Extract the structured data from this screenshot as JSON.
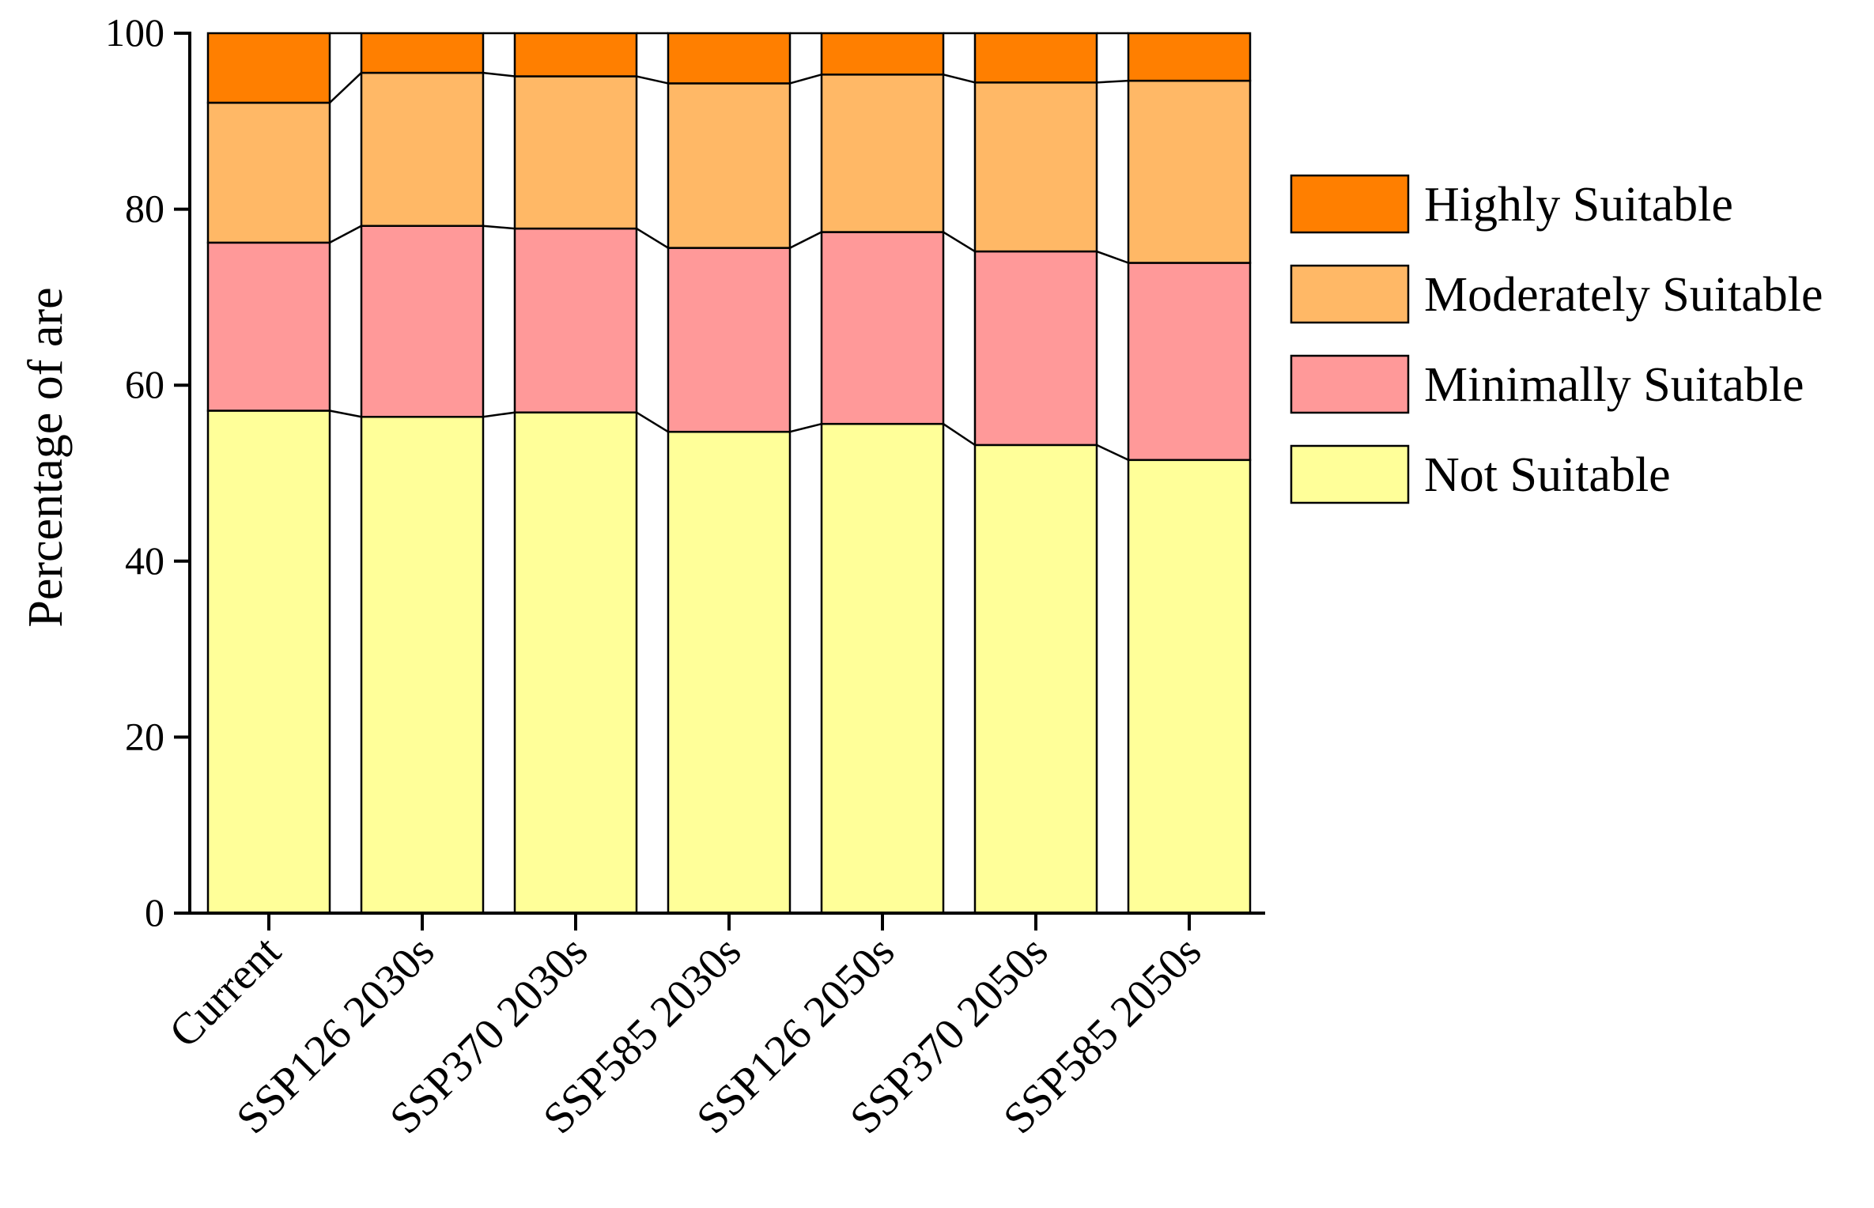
{
  "chart_data": {
    "type": "bar",
    "stacked": true,
    "normalized": true,
    "title": "",
    "xlabel": "",
    "ylabel": "Percentage of are",
    "ylim": [
      0,
      100
    ],
    "yticks": [
      0,
      20,
      40,
      60,
      80,
      100
    ],
    "grid": false,
    "legend_position": "right",
    "categories": [
      "Current",
      "SSP126 2030s",
      "SSP370 2030s",
      "SSP585 2030s",
      "SSP126 2050s",
      "SSP370 2050s",
      "SSP585 2050s"
    ],
    "series": [
      {
        "name": "Not Suitable",
        "color": "#FFFF99",
        "values": [
          57.1,
          56.4,
          56.9,
          54.7,
          55.6,
          53.2,
          51.5
        ]
      },
      {
        "name": "Minimally Suitable",
        "color": "#FF9999",
        "values": [
          19.1,
          21.7,
          20.9,
          20.9,
          21.8,
          22.0,
          22.4
        ]
      },
      {
        "name": "Moderately Suitable",
        "color": "#FFB866",
        "values": [
          15.9,
          17.4,
          17.3,
          18.7,
          17.9,
          19.2,
          20.7
        ]
      },
      {
        "name": "Highly Suitable",
        "color": "#FF7F00",
        "values": [
          7.9,
          4.5,
          4.9,
          5.7,
          4.7,
          5.6,
          5.4
        ]
      }
    ],
    "legend_order": [
      "Highly Suitable",
      "Moderately Suitable",
      "Minimally Suitable",
      "Not Suitable"
    ]
  }
}
